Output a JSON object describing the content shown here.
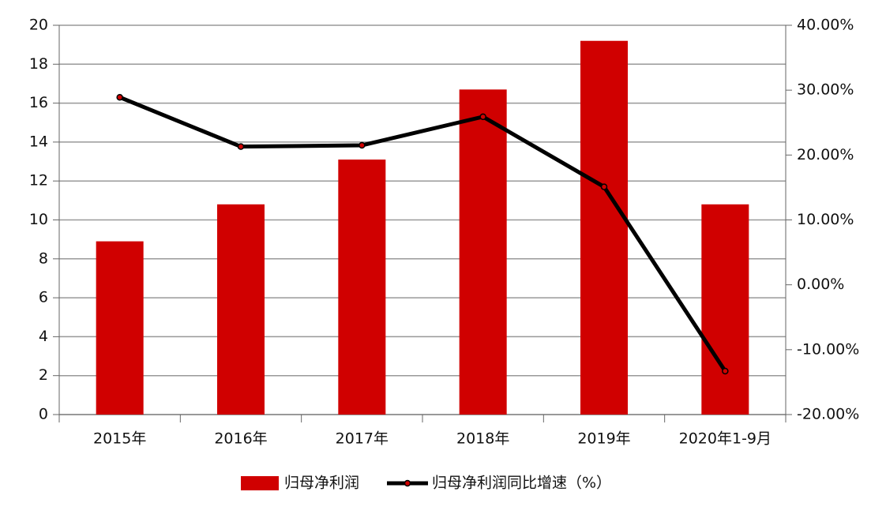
{
  "chart_data": {
    "type": "bar",
    "categories": [
      "2015年",
      "2016年",
      "2017年",
      "2018年",
      "2019年",
      "2020年1-9月"
    ],
    "series": [
      {
        "name": "归母净利润",
        "type": "bar",
        "color": "#d00000",
        "values": [
          8.9,
          10.8,
          13.1,
          16.7,
          19.2,
          10.8
        ]
      },
      {
        "name": "归母净利润同比增速（%）",
        "type": "line",
        "axis": "y2",
        "color": "#000000",
        "values": [
          28.9,
          21.3,
          21.5,
          25.9,
          15.1,
          -13.3
        ]
      }
    ],
    "ylim": [
      0,
      20
    ],
    "yticks": [
      0,
      2,
      4,
      6,
      8,
      10,
      12,
      14,
      16,
      18,
      20
    ],
    "y2lim": [
      -20,
      40
    ],
    "y2ticks": [
      {
        "value": -20,
        "label": "-20.00%"
      },
      {
        "value": -10,
        "label": "-10.00%"
      },
      {
        "value": 0,
        "label": "0.00%"
      },
      {
        "value": 10,
        "label": "10.00%"
      },
      {
        "value": 20,
        "label": "20.00%"
      },
      {
        "value": 30,
        "label": "30.00%"
      },
      {
        "value": 40,
        "label": "40.00%"
      }
    ],
    "grid": true,
    "legend": "bottom"
  }
}
